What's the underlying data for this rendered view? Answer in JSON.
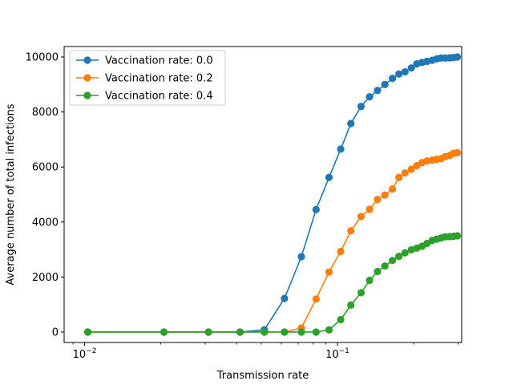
{
  "chart_data": {
    "type": "line",
    "xlabel": "Transmission rate",
    "ylabel": "Average number of total infections",
    "x_scale": "log",
    "xlim": [
      0.0083,
      0.31
    ],
    "ylim": [
      -380,
      10380
    ],
    "x_major_ticks": [
      {
        "value": 0.01,
        "base": "10",
        "exp": "−2"
      },
      {
        "value": 0.1,
        "base": "10",
        "exp": "−1"
      }
    ],
    "x_minor_ticks": [
      0.009,
      0.02,
      0.03,
      0.04,
      0.05,
      0.06,
      0.07,
      0.08,
      0.09,
      0.2,
      0.3
    ],
    "y_ticks": [
      {
        "value": 0,
        "label": "0"
      },
      {
        "value": 2000,
        "label": "2000"
      },
      {
        "value": 4000,
        "label": "4000"
      },
      {
        "value": 6000,
        "label": "6000"
      },
      {
        "value": 8000,
        "label": "8000"
      },
      {
        "value": 10000,
        "label": "10000"
      }
    ],
    "legend_position": "top-left",
    "grid": false,
    "series": [
      {
        "name": "Vaccination rate: 0.0",
        "color": "#1f77b4",
        "points": [
          [
            0.0103,
            0
          ],
          [
            0.0206,
            0
          ],
          [
            0.0309,
            0
          ],
          [
            0.0412,
            0
          ],
          [
            0.0514,
            80
          ],
          [
            0.0617,
            1220
          ],
          [
            0.072,
            2740
          ],
          [
            0.0823,
            4450
          ],
          [
            0.0926,
            5620
          ],
          [
            0.103,
            6650
          ],
          [
            0.113,
            7580
          ],
          [
            0.124,
            8200
          ],
          [
            0.134,
            8550
          ],
          [
            0.144,
            8780
          ],
          [
            0.154,
            9000
          ],
          [
            0.165,
            9220
          ],
          [
            0.175,
            9380
          ],
          [
            0.185,
            9460
          ],
          [
            0.196,
            9600
          ],
          [
            0.206,
            9750
          ],
          [
            0.216,
            9800
          ],
          [
            0.226,
            9840
          ],
          [
            0.237,
            9880
          ],
          [
            0.247,
            9930
          ],
          [
            0.257,
            9960
          ],
          [
            0.267,
            9960
          ],
          [
            0.278,
            9970
          ],
          [
            0.288,
            9980
          ],
          [
            0.298,
            10000
          ]
        ]
      },
      {
        "name": "Vaccination rate: 0.2",
        "color": "#ff7f0e",
        "points": [
          [
            0.0103,
            0
          ],
          [
            0.0206,
            0
          ],
          [
            0.0309,
            0
          ],
          [
            0.0412,
            0
          ],
          [
            0.0514,
            0
          ],
          [
            0.0617,
            0
          ],
          [
            0.072,
            150
          ],
          [
            0.0823,
            1200
          ],
          [
            0.0926,
            2180
          ],
          [
            0.103,
            2930
          ],
          [
            0.113,
            3680
          ],
          [
            0.124,
            4200
          ],
          [
            0.134,
            4460
          ],
          [
            0.144,
            4820
          ],
          [
            0.154,
            4980
          ],
          [
            0.165,
            5200
          ],
          [
            0.175,
            5620
          ],
          [
            0.185,
            5780
          ],
          [
            0.196,
            5920
          ],
          [
            0.206,
            6050
          ],
          [
            0.216,
            6160
          ],
          [
            0.226,
            6220
          ],
          [
            0.237,
            6250
          ],
          [
            0.247,
            6280
          ],
          [
            0.257,
            6300
          ],
          [
            0.267,
            6380
          ],
          [
            0.278,
            6420
          ],
          [
            0.288,
            6500
          ],
          [
            0.298,
            6520
          ]
        ]
      },
      {
        "name": "Vaccination rate: 0.4",
        "color": "#2ca02c",
        "points": [
          [
            0.0103,
            0
          ],
          [
            0.0206,
            0
          ],
          [
            0.0309,
            0
          ],
          [
            0.0412,
            0
          ],
          [
            0.0514,
            0
          ],
          [
            0.0617,
            0
          ],
          [
            0.072,
            0
          ],
          [
            0.0823,
            0
          ],
          [
            0.0926,
            80
          ],
          [
            0.103,
            450
          ],
          [
            0.113,
            980
          ],
          [
            0.124,
            1430
          ],
          [
            0.134,
            1880
          ],
          [
            0.144,
            2200
          ],
          [
            0.154,
            2400
          ],
          [
            0.165,
            2600
          ],
          [
            0.175,
            2750
          ],
          [
            0.185,
            2880
          ],
          [
            0.196,
            2990
          ],
          [
            0.206,
            3050
          ],
          [
            0.216,
            3120
          ],
          [
            0.226,
            3220
          ],
          [
            0.237,
            3330
          ],
          [
            0.247,
            3380
          ],
          [
            0.257,
            3420
          ],
          [
            0.267,
            3460
          ],
          [
            0.278,
            3470
          ],
          [
            0.288,
            3480
          ],
          [
            0.298,
            3500
          ]
        ]
      }
    ]
  }
}
